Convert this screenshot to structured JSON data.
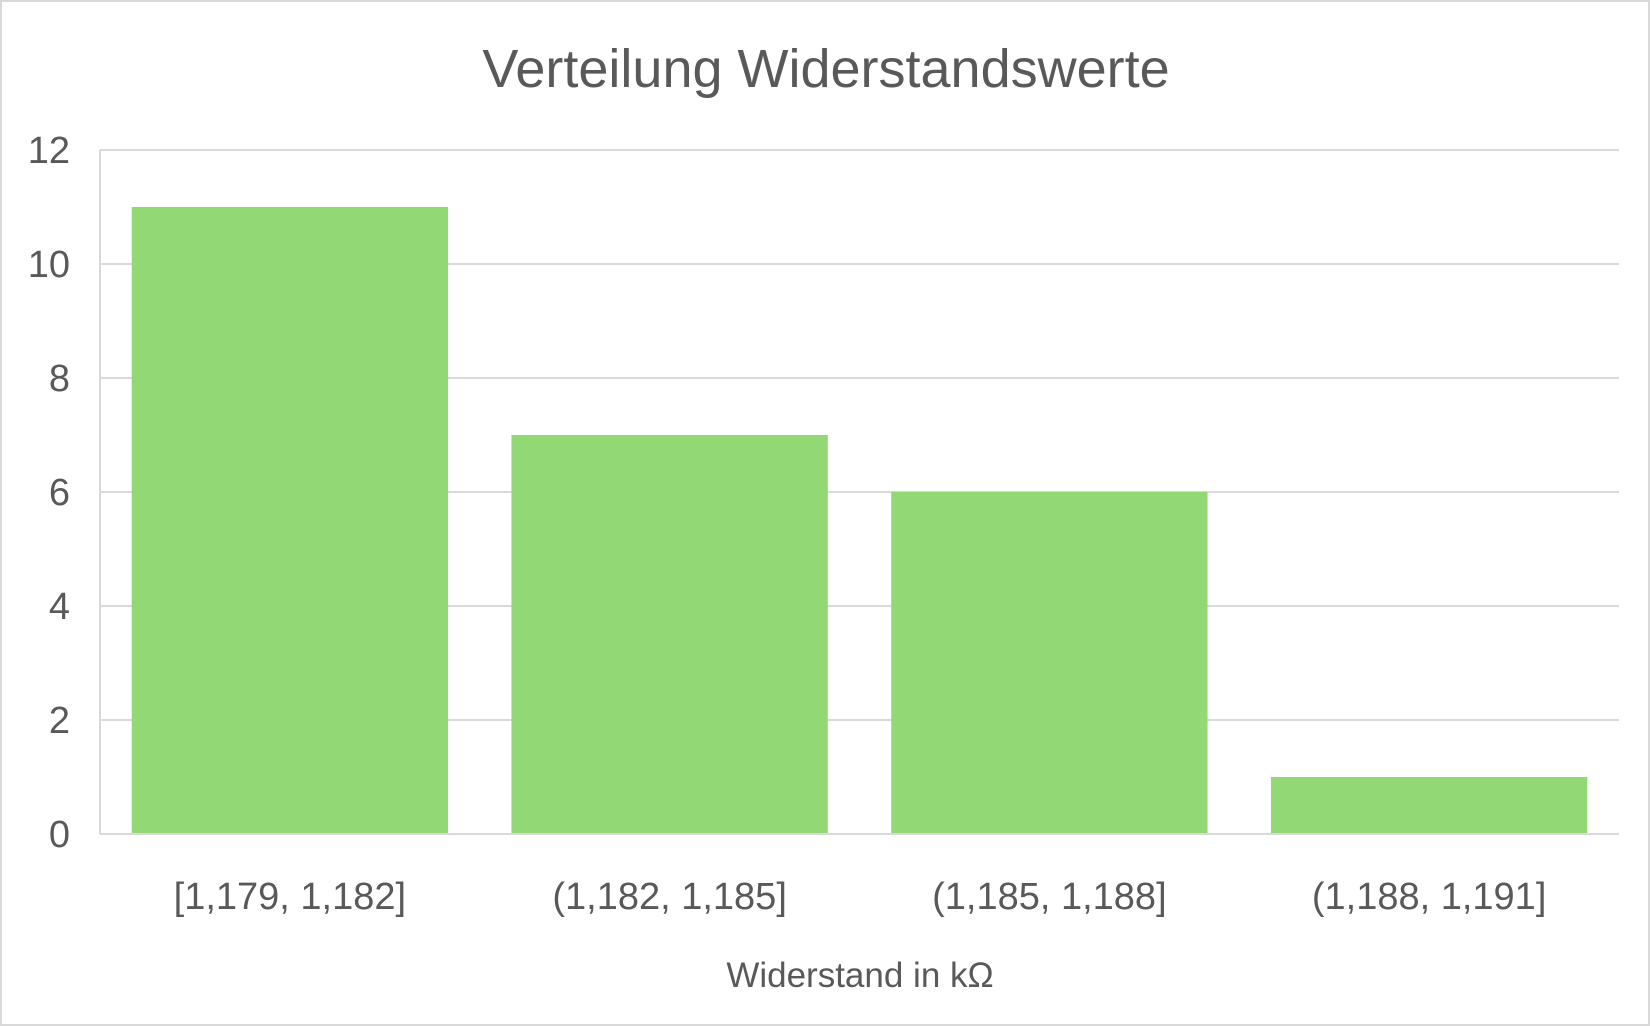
{
  "chart_data": {
    "type": "bar",
    "title": "Verteilung Widerstandswerte",
    "xlabel": "Widerstand in kΩ",
    "ylabel": "",
    "categories": [
      "[1,179, 1,182]",
      "(1,182, 1,185]",
      "(1,185, 1,188]",
      "(1,188, 1,191]"
    ],
    "values": [
      11,
      7,
      6,
      1
    ],
    "ylim": [
      0,
      12
    ],
    "yticks": [
      "0",
      "2",
      "4",
      "6",
      "8",
      "10",
      "12"
    ],
    "grid": true,
    "legend": "none",
    "colors": {
      "bar": "#92d975",
      "grid": "#d9d9d9",
      "text": "#595959",
      "border": "#d9d9d9"
    }
  }
}
